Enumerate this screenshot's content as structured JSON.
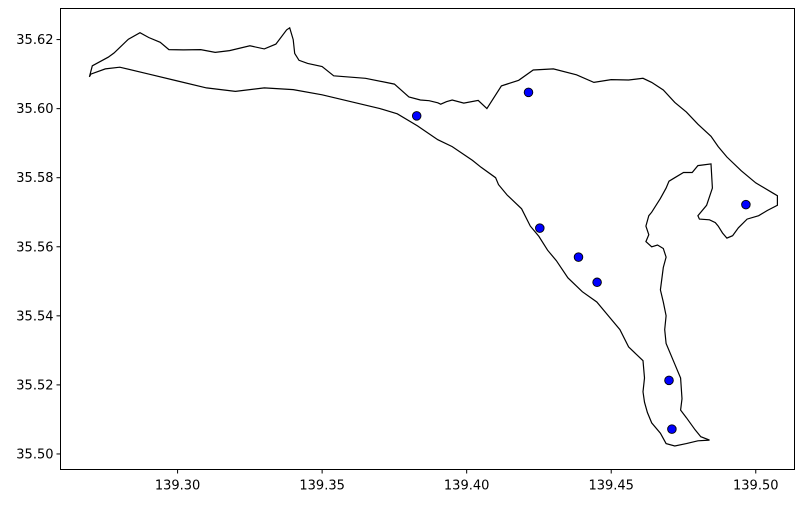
{
  "chart_data": {
    "type": "scatter",
    "title": "",
    "xlabel": "",
    "ylabel": "",
    "xlim": [
      139.2595,
      139.5134
    ],
    "ylim": [
      35.4955,
      35.629
    ],
    "x_ticks": [
      139.3,
      139.35,
      139.4,
      139.45,
      139.5
    ],
    "x_tick_labels": [
      "139.30",
      "139.35",
      "139.40",
      "139.45",
      "139.50"
    ],
    "y_ticks": [
      35.5,
      35.52,
      35.54,
      35.56,
      35.58,
      35.6,
      35.62
    ],
    "y_tick_labels": [
      "35.50",
      "35.52",
      "35.54",
      "35.56",
      "35.58",
      "35.60",
      "35.62"
    ],
    "grid": false,
    "legend": "none",
    "boundary_color": "#000000",
    "marker_color": "#0000ff",
    "marker_edge_color": "#000000",
    "points": [
      {
        "x": 139.3827,
        "y": 35.5979
      },
      {
        "x": 139.4214,
        "y": 35.6047
      },
      {
        "x": 139.4253,
        "y": 35.5654
      },
      {
        "x": 139.4387,
        "y": 35.557
      },
      {
        "x": 139.4451,
        "y": 35.5497
      },
      {
        "x": 139.47,
        "y": 35.5213
      },
      {
        "x": 139.471,
        "y": 35.5072
      },
      {
        "x": 139.4966,
        "y": 35.5722
      }
    ],
    "boundary": [
      [
        139.2695,
        35.6092
      ],
      [
        139.2705,
        35.6124
      ],
      [
        139.276,
        35.6149
      ],
      [
        139.278,
        35.6161
      ],
      [
        139.283,
        35.6201
      ],
      [
        139.287,
        35.622
      ],
      [
        139.29,
        35.6206
      ],
      [
        139.294,
        35.6192
      ],
      [
        139.297,
        35.6171
      ],
      [
        139.302,
        35.617
      ],
      [
        139.308,
        35.6171
      ],
      [
        139.313,
        35.6163
      ],
      [
        139.318,
        35.6168
      ],
      [
        139.325,
        35.6182
      ],
      [
        139.33,
        35.6173
      ],
      [
        139.334,
        35.6187
      ],
      [
        139.3377,
        35.6228
      ],
      [
        139.3388,
        35.6234
      ],
      [
        139.34,
        35.62
      ],
      [
        139.3405,
        35.616
      ],
      [
        139.342,
        35.614
      ],
      [
        139.345,
        35.6131
      ],
      [
        139.35,
        35.6122
      ],
      [
        139.354,
        35.6095
      ],
      [
        139.365,
        35.6088
      ],
      [
        139.375,
        35.6071
      ],
      [
        139.38,
        35.6034
      ],
      [
        139.384,
        35.6025
      ],
      [
        139.387,
        35.6023
      ],
      [
        139.39,
        35.6017
      ],
      [
        139.391,
        35.6013
      ],
      [
        139.393,
        35.602
      ],
      [
        139.395,
        35.6025
      ],
      [
        139.399,
        35.6016
      ],
      [
        139.404,
        35.6024
      ],
      [
        139.407,
        35.6
      ],
      [
        139.412,
        35.6066
      ],
      [
        139.418,
        35.6082
      ],
      [
        139.423,
        35.6112
      ],
      [
        139.43,
        35.6115
      ],
      [
        139.438,
        35.6098
      ],
      [
        139.444,
        35.6076
      ],
      [
        139.45,
        35.6084
      ],
      [
        139.456,
        35.6083
      ],
      [
        139.461,
        35.6088
      ],
      [
        139.464,
        35.6076
      ],
      [
        139.468,
        35.6054
      ],
      [
        139.472,
        35.6018
      ],
      [
        139.476,
        35.599
      ],
      [
        139.48,
        35.5955
      ],
      [
        139.4845,
        35.592
      ],
      [
        139.487,
        35.589
      ],
      [
        139.49,
        35.586
      ],
      [
        139.495,
        35.582
      ],
      [
        139.5,
        35.5785
      ],
      [
        139.506,
        35.5755
      ],
      [
        139.5075,
        35.5748
      ],
      [
        139.5075,
        35.572
      ],
      [
        139.504,
        35.5705
      ],
      [
        139.501,
        35.569
      ],
      [
        139.497,
        35.568
      ],
      [
        139.494,
        35.5655
      ],
      [
        139.492,
        35.5632
      ],
      [
        139.49,
        35.5625
      ],
      [
        139.4885,
        35.564
      ],
      [
        139.487,
        35.566
      ],
      [
        139.486,
        35.567
      ],
      [
        139.484,
        35.5678
      ],
      [
        139.4805,
        35.568
      ],
      [
        139.48,
        35.569
      ],
      [
        139.483,
        35.572
      ],
      [
        139.485,
        35.577
      ],
      [
        139.4845,
        35.584
      ],
      [
        139.48,
        35.5835
      ],
      [
        139.478,
        35.5815
      ],
      [
        139.475,
        35.5815
      ],
      [
        139.472,
        35.58
      ],
      [
        139.47,
        35.579
      ],
      [
        139.469,
        35.577
      ],
      [
        139.467,
        35.574
      ],
      [
        139.464,
        35.57
      ],
      [
        139.463,
        35.569
      ],
      [
        139.462,
        35.566
      ],
      [
        139.463,
        35.5635
      ],
      [
        139.462,
        35.5615
      ],
      [
        139.464,
        35.56
      ],
      [
        139.466,
        35.5605
      ],
      [
        139.468,
        35.5595
      ],
      [
        139.469,
        35.557
      ],
      [
        139.468,
        35.554
      ],
      [
        139.467,
        35.5475
      ],
      [
        139.468,
        35.544
      ],
      [
        139.469,
        35.54
      ],
      [
        139.4685,
        35.536
      ],
      [
        139.469,
        35.532
      ],
      [
        139.472,
        35.526
      ],
      [
        139.474,
        35.522
      ],
      [
        139.4745,
        35.516
      ],
      [
        139.474,
        35.5127
      ],
      [
        139.476,
        35.5105
      ],
      [
        139.479,
        35.507
      ],
      [
        139.481,
        35.505
      ],
      [
        139.484,
        35.504
      ],
      [
        139.48,
        35.5038
      ],
      [
        139.476,
        35.503
      ],
      [
        139.472,
        35.5023
      ],
      [
        139.469,
        35.503
      ],
      [
        139.467,
        35.506
      ],
      [
        139.464,
        35.509
      ],
      [
        139.4625,
        35.512
      ],
      [
        139.4615,
        35.515
      ],
      [
        139.461,
        35.518
      ],
      [
        139.4615,
        35.522
      ],
      [
        139.461,
        35.527
      ],
      [
        139.456,
        35.531
      ],
      [
        139.453,
        35.536
      ],
      [
        139.449,
        35.54
      ],
      [
        139.445,
        35.544
      ],
      [
        139.44,
        35.547
      ],
      [
        139.435,
        35.551
      ],
      [
        139.431,
        35.556
      ],
      [
        139.428,
        35.559
      ],
      [
        139.425,
        35.563
      ],
      [
        139.422,
        35.566
      ],
      [
        139.419,
        35.571
      ],
      [
        139.414,
        35.575
      ],
      [
        139.411,
        35.578
      ],
      [
        139.41,
        35.58
      ],
      [
        139.405,
        35.583
      ],
      [
        139.402,
        35.585
      ],
      [
        139.395,
        35.589
      ],
      [
        139.39,
        35.591
      ],
      [
        139.383,
        35.595
      ],
      [
        139.376,
        35.5985
      ],
      [
        139.37,
        35.6
      ],
      [
        139.36,
        35.602
      ],
      [
        139.35,
        35.604
      ],
      [
        139.34,
        35.6055
      ],
      [
        139.33,
        35.606
      ],
      [
        139.32,
        35.605
      ],
      [
        139.31,
        35.606
      ],
      [
        139.3,
        35.608
      ],
      [
        139.29,
        35.61
      ],
      [
        139.28,
        35.612
      ],
      [
        139.275,
        35.6115
      ],
      [
        139.27,
        35.61
      ],
      [
        139.2695,
        35.6092
      ]
    ]
  }
}
